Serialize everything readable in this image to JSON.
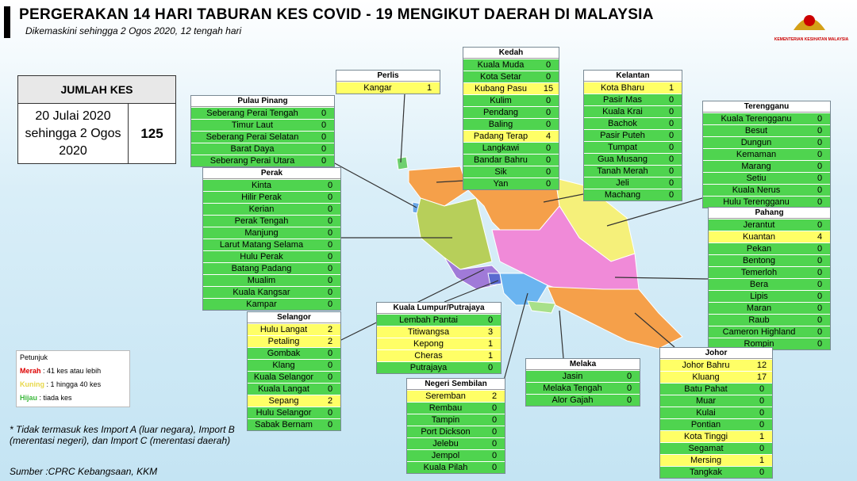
{
  "title": "PERGERAKAN 14 HARI TABURAN KES COVID - 19 MENGIKUT DAERAH DI MALAYSIA",
  "subtitle": "Dikemaskini sehingga 2 Ogos 2020, 12 tengah hari",
  "logo_text": "KEMENTERIAN KESIHATAN MALAYSIA",
  "total": {
    "label": "JUMLAH KES",
    "period": "20 Julai 2020 sehingga 2 Ogos 2020",
    "value": 125
  },
  "states": [
    {
      "name": "Perlis",
      "districts": [
        {
          "name": "Kangar",
          "cases": 1
        }
      ]
    },
    {
      "name": "Kedah",
      "districts": [
        {
          "name": "Kuala Muda",
          "cases": 0
        },
        {
          "name": "Kota Setar",
          "cases": 0
        },
        {
          "name": "Kubang Pasu",
          "cases": 15
        },
        {
          "name": "Kulim",
          "cases": 0
        },
        {
          "name": "Pendang",
          "cases": 0
        },
        {
          "name": "Baling",
          "cases": 0
        },
        {
          "name": "Padang Terap",
          "cases": 4
        },
        {
          "name": "Langkawi",
          "cases": 0
        },
        {
          "name": "Bandar Bahru",
          "cases": 0
        },
        {
          "name": "Sik",
          "cases": 0
        },
        {
          "name": "Yan",
          "cases": 0
        }
      ]
    },
    {
      "name": "Kelantan",
      "districts": [
        {
          "name": "Kota Bharu",
          "cases": 1
        },
        {
          "name": "Pasir Mas",
          "cases": 0
        },
        {
          "name": "Kuala Krai",
          "cases": 0
        },
        {
          "name": "Bachok",
          "cases": 0
        },
        {
          "name": "Pasir Puteh",
          "cases": 0
        },
        {
          "name": "Tumpat",
          "cases": 0
        },
        {
          "name": "Gua Musang",
          "cases": 0
        },
        {
          "name": "Tanah Merah",
          "cases": 0
        },
        {
          "name": "Jeli",
          "cases": 0
        },
        {
          "name": "Machang",
          "cases": 0
        }
      ]
    },
    {
      "name": "Pulau Pinang",
      "districts": [
        {
          "name": "Seberang Perai Tengah",
          "cases": 0
        },
        {
          "name": "Timur Laut",
          "cases": 0
        },
        {
          "name": "Seberang Perai Selatan",
          "cases": 0
        },
        {
          "name": "Barat Daya",
          "cases": 0
        },
        {
          "name": "Seberang Perai Utara",
          "cases": 0
        }
      ]
    },
    {
      "name": "Terengganu",
      "districts": [
        {
          "name": "Kuala Terengganu",
          "cases": 0
        },
        {
          "name": "Besut",
          "cases": 0
        },
        {
          "name": "Dungun",
          "cases": 0
        },
        {
          "name": "Kemaman",
          "cases": 0
        },
        {
          "name": "Marang",
          "cases": 0
        },
        {
          "name": "Setiu",
          "cases": 0
        },
        {
          "name": "Kuala Nerus",
          "cases": 0
        },
        {
          "name": "Hulu Terengganu",
          "cases": 0
        }
      ]
    },
    {
      "name": "Perak",
      "districts": [
        {
          "name": "Kinta",
          "cases": 0
        },
        {
          "name": "Hilir Perak",
          "cases": 0
        },
        {
          "name": "Kerian",
          "cases": 0
        },
        {
          "name": "Perak Tengah",
          "cases": 0
        },
        {
          "name": "Manjung",
          "cases": 0
        },
        {
          "name": "Larut Matang Selama",
          "cases": 0
        },
        {
          "name": "Hulu Perak",
          "cases": 0
        },
        {
          "name": "Batang Padang",
          "cases": 0
        },
        {
          "name": "Mualim",
          "cases": 0
        },
        {
          "name": "Kuala Kangsar",
          "cases": 0
        },
        {
          "name": "Kampar",
          "cases": 0
        }
      ]
    },
    {
      "name": "Pahang",
      "districts": [
        {
          "name": "Jerantut",
          "cases": 0
        },
        {
          "name": "Kuantan",
          "cases": 4
        },
        {
          "name": "Pekan",
          "cases": 0
        },
        {
          "name": "Bentong",
          "cases": 0
        },
        {
          "name": "Temerloh",
          "cases": 0
        },
        {
          "name": "Bera",
          "cases": 0
        },
        {
          "name": "Lipis",
          "cases": 0
        },
        {
          "name": "Maran",
          "cases": 0
        },
        {
          "name": "Raub",
          "cases": 0
        },
        {
          "name": "Cameron Highland",
          "cases": 0
        },
        {
          "name": "Rompin",
          "cases": 0
        }
      ]
    },
    {
      "name": "Selangor",
      "districts": [
        {
          "name": "Hulu Langat",
          "cases": 2
        },
        {
          "name": "Petaling",
          "cases": 2
        },
        {
          "name": "Gombak",
          "cases": 0
        },
        {
          "name": "Klang",
          "cases": 0
        },
        {
          "name": "Kuala Selangor",
          "cases": 0
        },
        {
          "name": "Kuala Langat",
          "cases": 0
        },
        {
          "name": "Sepang",
          "cases": 2
        },
        {
          "name": "Hulu Selangor",
          "cases": 0
        },
        {
          "name": "Sabak Bernam",
          "cases": 0
        }
      ]
    },
    {
      "name": "Kuala Lumpur/Putrajaya",
      "districts": [
        {
          "name": "Lembah Pantai",
          "cases": 0
        },
        {
          "name": "Titiwangsa",
          "cases": 3
        },
        {
          "name": "Kepong",
          "cases": 1
        },
        {
          "name": "Cheras",
          "cases": 1
        },
        {
          "name": "Putrajaya",
          "cases": 0
        }
      ]
    },
    {
      "name": "Negeri Sembilan",
      "districts": [
        {
          "name": "Seremban",
          "cases": 2
        },
        {
          "name": "Rembau",
          "cases": 0
        },
        {
          "name": "Tampin",
          "cases": 0
        },
        {
          "name": "Port Dickson",
          "cases": 0
        },
        {
          "name": "Jelebu",
          "cases": 0
        },
        {
          "name": "Jempol",
          "cases": 0
        },
        {
          "name": "Kuala Pilah",
          "cases": 0
        }
      ]
    },
    {
      "name": "Melaka",
      "districts": [
        {
          "name": "Jasin",
          "cases": 0
        },
        {
          "name": "Melaka Tengah",
          "cases": 0
        },
        {
          "name": "Alor Gajah",
          "cases": 0
        }
      ]
    },
    {
      "name": "Johor",
      "districts": [
        {
          "name": "Johor Bahru",
          "cases": 12
        },
        {
          "name": "Kluang",
          "cases": 17
        },
        {
          "name": "Batu Pahat",
          "cases": 0
        },
        {
          "name": "Muar",
          "cases": 0
        },
        {
          "name": "Kulai",
          "cases": 0
        },
        {
          "name": "Pontian",
          "cases": 0
        },
        {
          "name": "Kota Tinggi",
          "cases": 1
        },
        {
          "name": "Segamat",
          "cases": 0
        },
        {
          "name": "Mersing",
          "cases": 1
        },
        {
          "name": "Tangkak",
          "cases": 0
        }
      ]
    }
  ],
  "legend": {
    "title": "Petunjuk",
    "items": [
      {
        "term": "Merah",
        "desc": ": 41 kes atau lebih"
      },
      {
        "term": "Kuning",
        "desc": ": 1 hingga 40 kes"
      },
      {
        "term": "Hijau",
        "desc": ": tiada kes"
      }
    ]
  },
  "note": "* Tidak termasuk kes Import A (luar negara), Import B (merentasi negeri),  dan Import C (merentasi daerah)",
  "source": "Sumber :CPRC Kebangsaan,  KKM"
}
